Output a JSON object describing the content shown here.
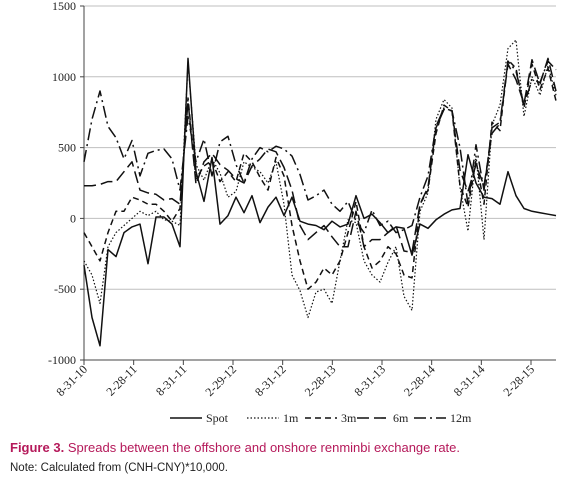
{
  "chart_data": {
    "type": "line",
    "title": "",
    "xlabel": "",
    "ylabel": "",
    "ylim": [
      -1000,
      1500
    ],
    "yticks": [
      "1500",
      "1000",
      "500",
      "0",
      "-500",
      "-1000"
    ],
    "xticks": [
      "8-31-10",
      "2-28-11",
      "8-31-11",
      "2-29-12",
      "8-31-12",
      "2-28-13",
      "8-31-13",
      "2-28-14",
      "8-31-14",
      "2-28-15"
    ],
    "grid": "horizontal",
    "legend": "bottom",
    "x_index_range": [
      0,
      59
    ],
    "series": [
      {
        "name": "Spot",
        "values": [
          -330,
          -700,
          -900,
          -220,
          -270,
          -100,
          -60,
          -40,
          -320,
          10,
          10,
          -40,
          -200,
          1130,
          330,
          120,
          430,
          -40,
          20,
          150,
          40,
          160,
          -30,
          80,
          150,
          20,
          150,
          -20,
          -40,
          -50,
          -80,
          -20,
          -60,
          -40,
          160,
          0,
          30,
          -30,
          -100,
          -60,
          -70,
          -260,
          -40,
          -70,
          -10,
          30,
          60,
          70,
          450,
          250,
          150,
          140,
          100,
          330,
          160,
          70,
          50,
          40,
          30,
          20
        ]
      },
      {
        "name": "1m",
        "values": [
          -300,
          -400,
          -600,
          -200,
          -100,
          -50,
          0,
          50,
          20,
          50,
          -10,
          -20,
          -50,
          1100,
          380,
          270,
          420,
          320,
          150,
          190,
          400,
          360,
          330,
          250,
          400,
          100,
          -400,
          -510,
          -700,
          -520,
          -500,
          -600,
          -300,
          -10,
          -30,
          -300,
          -400,
          -450,
          -310,
          -200,
          -550,
          -650,
          50,
          180,
          700,
          840,
          780,
          220,
          -90,
          450,
          -150,
          660,
          800,
          1200,
          1260,
          720,
          1000,
          870,
          1080,
          870
        ]
      },
      {
        "name": "3m",
        "values": [
          -100,
          -200,
          -300,
          -100,
          50,
          50,
          150,
          130,
          100,
          100,
          50,
          -20,
          70,
          850,
          280,
          370,
          410,
          260,
          330,
          260,
          460,
          400,
          290,
          200,
          430,
          300,
          -50,
          -300,
          -500,
          -450,
          -350,
          -400,
          -300,
          -100,
          120,
          -200,
          -350,
          -300,
          -200,
          -250,
          -400,
          -420,
          100,
          200,
          600,
          800,
          760,
          230,
          80,
          410,
          100,
          680,
          620,
          1120,
          1060,
          780,
          1090,
          910,
          1060,
          830
        ]
      },
      {
        "name": "6m",
        "values": [
          230,
          230,
          240,
          260,
          260,
          330,
          400,
          200,
          180,
          170,
          130,
          140,
          100,
          830,
          240,
          400,
          460,
          380,
          340,
          280,
          250,
          370,
          420,
          490,
          470,
          360,
          200,
          -50,
          -150,
          -100,
          -50,
          -130,
          -200,
          -200,
          50,
          -200,
          -150,
          -150,
          -100,
          -50,
          -230,
          -240,
          100,
          220,
          640,
          770,
          760,
          340,
          190,
          380,
          230,
          600,
          670,
          1090,
          980,
          810,
          1120,
          950,
          1130,
          900
        ]
      },
      {
        "name": "12m",
        "values": [
          400,
          700,
          900,
          650,
          570,
          420,
          550,
          300,
          460,
          480,
          490,
          420,
          200,
          720,
          400,
          560,
          300,
          540,
          580,
          380,
          250,
          420,
          500,
          470,
          510,
          490,
          440,
          310,
          130,
          160,
          200,
          100,
          50,
          120,
          -20,
          -100,
          60,
          -50,
          -20,
          -100,
          -80,
          -50,
          150,
          300,
          650,
          780,
          760,
          500,
          100,
          520,
          200,
          640,
          680,
          1110,
          1040,
          800,
          980,
          960,
          1110,
          1050
        ]
      }
    ]
  },
  "caption": {
    "figure_label": "Figure 3.",
    "text": "Spreads between the offshore and onshore renminbi exchange rate."
  },
  "note": "Note: Calculated from (CNH-CNY)*10,000."
}
